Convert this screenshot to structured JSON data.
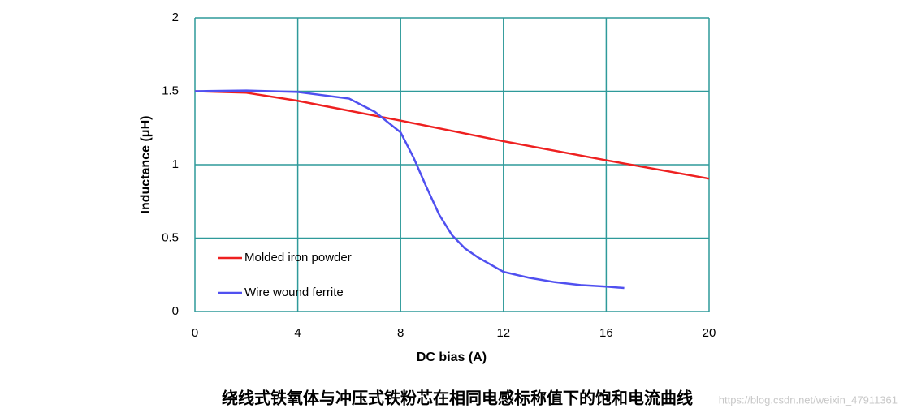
{
  "chart_data": {
    "type": "line",
    "x_label": "DC bias (A)",
    "y_label": "Inductance (μH)",
    "caption": "绕线式铁氧体与冲压式铁粉芯在相同电感标称值下的饱和电流曲线",
    "watermark": "https://blog.csdn.net/weixin_47911361",
    "xlim": [
      0,
      20
    ],
    "xticks": [
      0,
      4,
      8,
      12,
      16,
      20
    ],
    "ylim": [
      0,
      2
    ],
    "yticks": [
      0,
      0.5,
      1,
      1.5,
      2
    ],
    "grid": true,
    "grid_color": "#2e9a9a",
    "legend": "lower left",
    "series": [
      {
        "name": "Molded iron powder",
        "color": "#ee2020",
        "x": [
          0,
          2,
          4,
          8,
          12,
          16,
          20
        ],
        "values": [
          1.5,
          1.49,
          1.435,
          1.3,
          1.16,
          1.03,
          0.905
        ]
      },
      {
        "name": "Wire wound ferrite",
        "color": "#5050f0",
        "x": [
          0,
          2,
          4,
          6,
          7,
          8,
          8.5,
          9,
          9.5,
          10,
          10.5,
          11,
          12,
          13,
          14,
          15,
          16,
          16.7
        ],
        "values": [
          1.5,
          1.505,
          1.495,
          1.45,
          1.36,
          1.22,
          1.05,
          0.85,
          0.66,
          0.52,
          0.43,
          0.37,
          0.27,
          0.23,
          0.2,
          0.18,
          0.17,
          0.16
        ]
      }
    ]
  }
}
